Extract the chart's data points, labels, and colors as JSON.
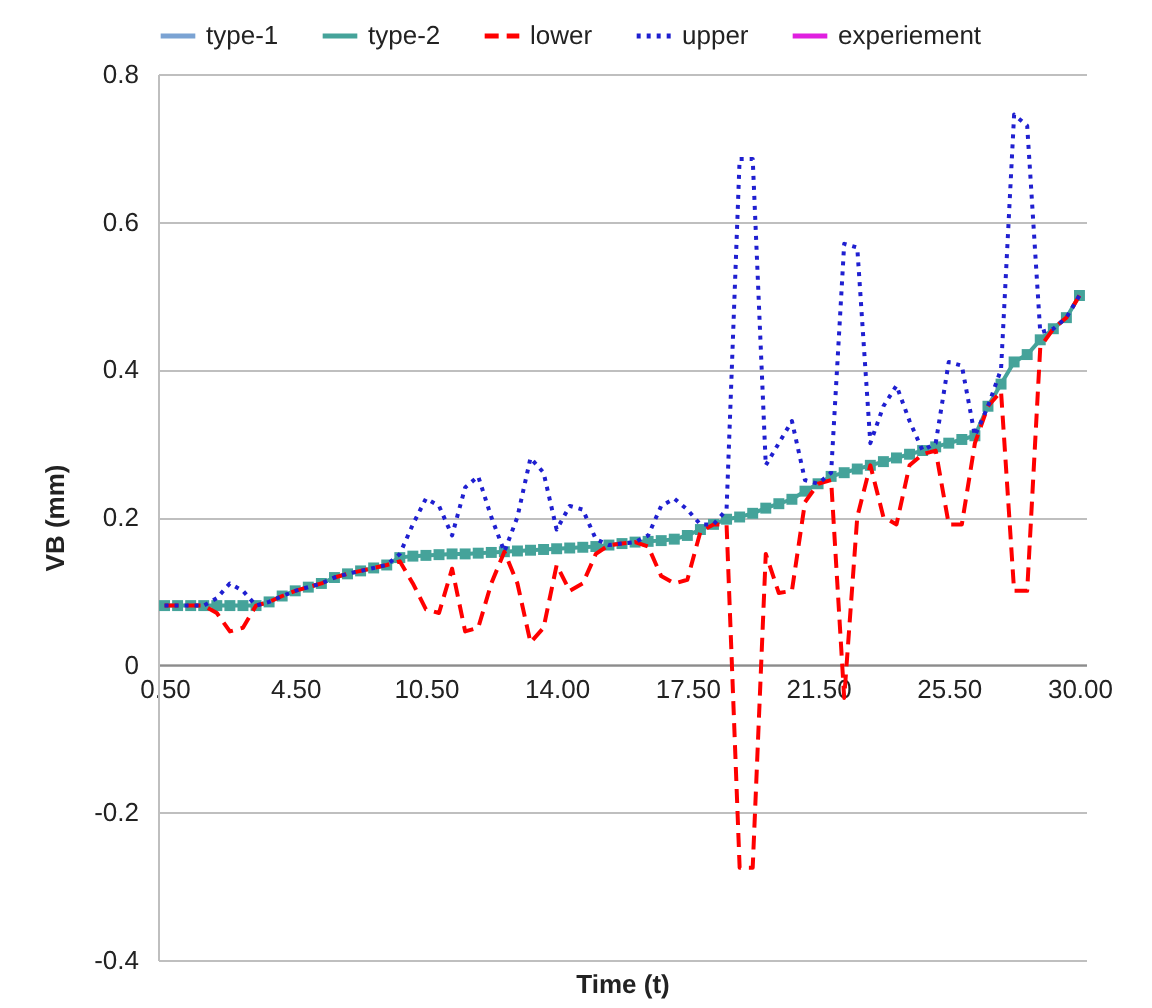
{
  "chart_data": {
    "type": "line",
    "xlabel": "Time (t)",
    "ylabel": "VB (mm)",
    "categories": [
      "0.50",
      null,
      null,
      null,
      null,
      null,
      null,
      null,
      null,
      null,
      "4.50",
      null,
      null,
      null,
      null,
      null,
      null,
      null,
      null,
      null,
      "10.50",
      null,
      null,
      null,
      null,
      null,
      null,
      null,
      null,
      null,
      "14.00",
      null,
      null,
      null,
      null,
      null,
      null,
      null,
      null,
      null,
      "17.50",
      null,
      null,
      null,
      null,
      null,
      null,
      null,
      null,
      null,
      "21.50",
      null,
      null,
      null,
      null,
      null,
      null,
      null,
      null,
      null,
      "25.50",
      null,
      null,
      null,
      null,
      null,
      null,
      null,
      null,
      null,
      "30.00"
    ],
    "ylim": [
      -0.4,
      0.8
    ],
    "yticks": [
      -0.4,
      -0.2,
      0,
      0.2,
      0.4,
      0.6,
      0.8
    ],
    "grid": "y",
    "legend": "top",
    "series": [
      {
        "name": "type-1",
        "color": "#7ba3d3",
        "marker": "diamond",
        "line_style": "solid",
        "values": [
          null,
          null,
          null,
          null,
          null,
          null,
          null,
          null,
          null,
          null,
          null,
          null,
          null,
          null,
          null,
          null,
          null,
          null,
          null,
          null,
          null,
          null,
          null,
          null,
          null,
          null,
          null,
          null,
          null,
          null,
          null,
          null,
          null,
          null,
          null,
          null,
          null,
          null,
          null,
          null,
          null,
          null,
          null,
          null,
          null,
          null,
          null,
          null,
          null,
          null,
          null,
          null,
          null,
          null,
          null,
          null,
          null,
          null,
          null,
          null,
          null,
          null,
          null,
          null,
          null,
          null,
          null,
          null,
          null,
          null,
          null
        ]
      },
      {
        "name": "type-2",
        "color": "#45a39a",
        "marker": "square",
        "line_style": "solid",
        "values": [
          0.08,
          0.08,
          0.08,
          0.08,
          0.08,
          0.08,
          0.08,
          0.08,
          0.085,
          0.093,
          0.1,
          0.105,
          0.11,
          0.118,
          0.123,
          0.127,
          0.131,
          0.135,
          0.145,
          0.147,
          0.148,
          0.149,
          0.15,
          0.15,
          0.151,
          0.152,
          0.153,
          0.154,
          0.155,
          0.156,
          0.157,
          0.158,
          0.159,
          0.16,
          0.162,
          0.164,
          0.166,
          0.167,
          0.168,
          0.17,
          0.175,
          0.183,
          0.19,
          0.197,
          0.2,
          0.205,
          0.212,
          0.218,
          0.224,
          0.235,
          0.245,
          0.255,
          0.26,
          0.265,
          0.27,
          0.275,
          0.28,
          0.285,
          0.29,
          0.295,
          0.3,
          0.305,
          0.31,
          0.35,
          0.38,
          0.41,
          0.42,
          0.44,
          0.455,
          0.47,
          0.5
        ]
      },
      {
        "name": "lower",
        "color": "#ff0000",
        "marker": "none",
        "line_style": "dashed",
        "values": [
          0.08,
          0.08,
          0.08,
          0.08,
          0.07,
          0.045,
          0.05,
          0.08,
          0.085,
          0.093,
          0.1,
          0.105,
          0.11,
          0.118,
          0.123,
          0.127,
          0.131,
          0.135,
          0.14,
          0.11,
          0.075,
          0.07,
          0.13,
          0.045,
          0.05,
          0.11,
          0.153,
          0.11,
          0.03,
          0.05,
          0.135,
          0.1,
          0.11,
          0.15,
          0.162,
          0.164,
          0.166,
          0.16,
          0.12,
          0.11,
          0.115,
          0.18,
          0.19,
          0.19,
          -0.275,
          -0.275,
          0.15,
          0.097,
          0.1,
          0.22,
          0.245,
          0.25,
          -0.045,
          0.2,
          0.27,
          0.2,
          0.19,
          0.27,
          0.285,
          0.29,
          0.19,
          0.19,
          0.3,
          0.35,
          0.37,
          0.1,
          0.1,
          0.43,
          0.455,
          0.47,
          0.5
        ]
      },
      {
        "name": "upper",
        "color": "#1f1fd0",
        "marker": "none",
        "line_style": "dotted",
        "values": [
          0.08,
          0.08,
          0.08,
          0.08,
          0.09,
          0.11,
          0.1,
          0.08,
          0.085,
          0.093,
          0.1,
          0.105,
          0.11,
          0.118,
          0.123,
          0.127,
          0.131,
          0.135,
          0.15,
          0.19,
          0.225,
          0.215,
          0.175,
          0.24,
          0.255,
          0.2,
          0.153,
          0.2,
          0.28,
          0.26,
          0.183,
          0.215,
          0.21,
          0.17,
          0.162,
          0.164,
          0.166,
          0.175,
          0.215,
          0.225,
          0.21,
          0.19,
          0.19,
          0.21,
          0.685,
          0.685,
          0.27,
          0.3,
          0.33,
          0.25,
          0.245,
          0.26,
          0.57,
          0.565,
          0.3,
          0.35,
          0.378,
          0.33,
          0.29,
          0.3,
          0.41,
          0.405,
          0.31,
          0.35,
          0.4,
          0.745,
          0.73,
          0.45,
          0.455,
          0.47,
          0.5
        ]
      },
      {
        "name": "experiement",
        "color": "#e020e0",
        "marker": "circle",
        "line_style": "solid",
        "values": [
          null,
          null,
          null,
          null,
          null,
          null,
          null,
          null,
          null,
          null,
          null,
          null,
          null,
          null,
          null,
          null,
          null,
          null,
          null,
          null,
          null,
          null,
          null,
          null,
          null,
          null,
          null,
          null,
          null,
          null,
          null,
          null,
          null,
          null,
          null,
          null,
          null,
          null,
          null,
          null,
          null,
          null,
          null,
          null,
          null,
          null,
          null,
          null,
          null,
          null,
          null,
          null,
          null,
          null,
          null,
          null,
          null,
          null,
          null,
          null,
          null,
          null,
          null,
          null,
          null,
          null,
          null,
          null,
          null,
          null,
          null
        ]
      }
    ]
  }
}
